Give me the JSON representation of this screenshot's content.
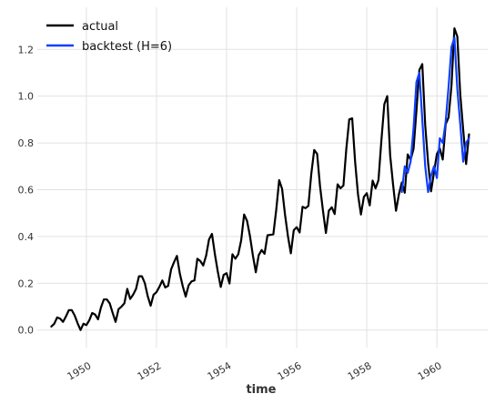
{
  "chart_data": {
    "type": "line",
    "xlabel": "time",
    "ylabel": "",
    "xlim": [
      1948.6,
      1961.45
    ],
    "ylim": [
      -0.075,
      1.38
    ],
    "x_ticks": [
      1950,
      1952,
      1954,
      1956,
      1958,
      1960
    ],
    "x_tick_labels": [
      "1950",
      "1952",
      "1954",
      "1956",
      "1958",
      "1960"
    ],
    "y_ticks": [
      0.0,
      0.2,
      0.4,
      0.6,
      0.8,
      1.0,
      1.2
    ],
    "y_tick_labels": [
      "0.0",
      "0.2",
      "0.4",
      "0.6",
      "0.8",
      "1.0",
      "1.2"
    ],
    "grid": true,
    "legend_position": "top-left",
    "series": [
      {
        "name": "actual",
        "color": "#000000",
        "start_year": 1949,
        "freq": "monthly",
        "values": [
          0.015,
          0.027,
          0.054,
          0.049,
          0.035,
          0.058,
          0.085,
          0.085,
          0.062,
          0.029,
          0.0,
          0.027,
          0.021,
          0.042,
          0.073,
          0.066,
          0.046,
          0.097,
          0.131,
          0.131,
          0.114,
          0.073,
          0.035,
          0.089,
          0.1,
          0.114,
          0.176,
          0.133,
          0.151,
          0.176,
          0.23,
          0.23,
          0.201,
          0.145,
          0.104,
          0.151,
          0.162,
          0.185,
          0.212,
          0.182,
          0.189,
          0.259,
          0.29,
          0.317,
          0.241,
          0.187,
          0.143,
          0.191,
          0.208,
          0.212,
          0.305,
          0.295,
          0.276,
          0.318,
          0.388,
          0.411,
          0.324,
          0.249,
          0.184,
          0.236,
          0.243,
          0.199,
          0.324,
          0.305,
          0.324,
          0.384,
          0.494,
          0.467,
          0.402,
          0.319,
          0.247,
          0.32,
          0.342,
          0.326,
          0.405,
          0.407,
          0.409,
          0.514,
          0.641,
          0.604,
          0.494,
          0.402,
          0.328,
          0.427,
          0.44,
          0.417,
          0.527,
          0.521,
          0.531,
          0.668,
          0.77,
          0.753,
          0.614,
          0.51,
          0.415,
          0.51,
          0.525,
          0.496,
          0.623,
          0.606,
          0.618,
          0.776,
          0.901,
          0.905,
          0.72,
          0.579,
          0.494,
          0.569,
          0.585,
          0.533,
          0.639,
          0.606,
          0.641,
          0.811,
          0.965,
          1.0,
          0.747,
          0.622,
          0.51,
          0.581,
          0.631,
          0.587,
          0.751,
          0.728,
          0.774,
          0.938,
          1.112,
          1.137,
          0.876,
          0.714,
          0.593,
          0.674,
          0.753,
          0.776,
          0.729,
          0.88,
          0.909,
          1.046,
          1.29,
          1.255,
          1.008,
          0.857,
          0.71,
          0.837
        ]
      },
      {
        "name": "backtest (H=6)",
        "color": "#0f3fff",
        "start_year": 1959.0,
        "freq": "monthly",
        "values": [
          0.59,
          0.7,
          0.672,
          0.72,
          0.86,
          1.06,
          1.1,
          0.9,
          0.7,
          0.59,
          0.66,
          0.7,
          0.65,
          0.82,
          0.8,
          0.89,
          1.04,
          1.21,
          1.25,
          1.03,
          0.88,
          0.72,
          0.8,
          0.82
        ]
      }
    ]
  }
}
